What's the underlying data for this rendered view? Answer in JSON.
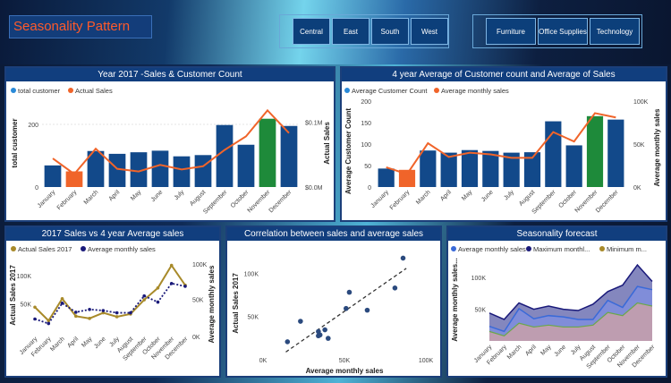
{
  "header": {
    "title": "Seasonality Pattern"
  },
  "slicers": {
    "regions": [
      "Central",
      "East",
      "South",
      "West"
    ],
    "categories": [
      "Furniture",
      "Office Supplies",
      "Technology"
    ]
  },
  "months": [
    "January",
    "February",
    "March",
    "April",
    "May",
    "June",
    "July",
    "August",
    "September",
    "October",
    "November",
    "December"
  ],
  "panel1": {
    "title": "Year 2017 -Sales & Customer Count",
    "legend": [
      "total customer",
      "Actual Sales"
    ],
    "ylabel_left": "total customer",
    "ylabel_right": "Actual Sales",
    "yticks_left": [
      "200",
      "0"
    ],
    "yticks_right": [
      "$0.1M",
      "$0.0M"
    ]
  },
  "panel2": {
    "title": "4 year Average of Customer count and Average of Sales",
    "legend": [
      "Average Customer Count",
      "Average monthly sales"
    ],
    "ylabel_left": "Average Customer Count",
    "ylabel_right": "Average monthly sales",
    "yticks_left": [
      "200",
      "150",
      "100",
      "50",
      "0"
    ],
    "yticks_right": [
      "100K",
      "50K",
      "0K"
    ]
  },
  "panel3": {
    "title": "2017 Sales vs 4 year Average sales",
    "legend": [
      "Actual Sales 2017",
      "Average monthly sales"
    ],
    "ylabel_left": "Actual Sales 2017",
    "ylabel_right": "Average monthly sales",
    "yticks_left": [
      "100K",
      "50K"
    ],
    "yticks_right": [
      "100K",
      "50K",
      "0K"
    ]
  },
  "panel4": {
    "title": "Correlation between sales and average sales",
    "xlabel": "Average monthly sales",
    "ylabel": "Actual Sales 2017",
    "xticks": [
      "0K",
      "50K",
      "100K"
    ],
    "yticks": [
      "100K",
      "50K"
    ]
  },
  "panel5": {
    "title": "Seasonality forecast",
    "legend": [
      "Average monthly sales",
      "Maximum monthl...",
      "Minimum m..."
    ],
    "ylabel": "Average monthly sales...",
    "yticks": [
      "100K",
      "50K"
    ]
  },
  "colors": {
    "bar": "#12498a",
    "orange": "#f0642a",
    "green": "#1e8a3a",
    "gold": "#a88a2a",
    "navy": "#1a1a7a"
  },
  "chart_data": [
    {
      "type": "bar",
      "title": "Year 2017 -Sales & Customer Count",
      "categories": [
        "January",
        "February",
        "March",
        "April",
        "May",
        "June",
        "July",
        "August",
        "September",
        "October",
        "November",
        "December"
      ],
      "series": [
        {
          "name": "total customer",
          "values": [
            69,
            50,
            115,
            106,
            111,
            116,
            98,
            102,
            198,
            135,
            218,
            195
          ]
        },
        {
          "name": "Actual Sales",
          "values": [
            44000,
            20000,
            59000,
            28000,
            24000,
            34000,
            27000,
            32000,
            57000,
            78000,
            118000,
            83000
          ]
        }
      ],
      "ylim_left": [
        0,
        280
      ],
      "ylim_right": [
        0,
        135000
      ]
    },
    {
      "type": "bar",
      "title": "4 year Average of Customer count and Average of Sales",
      "categories": [
        "January",
        "February",
        "March",
        "April",
        "May",
        "June",
        "July",
        "August",
        "September",
        "October",
        "November",
        "December"
      ],
      "series": [
        {
          "name": "Average Customer Count",
          "values": [
            43,
            40,
            85,
            80,
            86,
            84,
            80,
            81,
            153,
            97,
            165,
            157
          ]
        },
        {
          "name": "Average monthly sales",
          "values": [
            23000,
            15000,
            51000,
            35000,
            40000,
            38000,
            34000,
            34000,
            64000,
            53000,
            86000,
            81000
          ]
        }
      ],
      "ylim_left": [
        0,
        200
      ],
      "ylim_right": [
        0,
        100000
      ]
    },
    {
      "type": "line",
      "title": "2017 Sales vs 4 year Average sales",
      "categories": [
        "January",
        "February",
        "March",
        "April",
        "May",
        "June",
        "July",
        "August",
        "September",
        "October",
        "November",
        "December"
      ],
      "series": [
        {
          "name": "Actual Sales 2017",
          "values": [
            44000,
            20000,
            59000,
            28000,
            24000,
            34000,
            27000,
            32000,
            57000,
            78000,
            118000,
            83000
          ]
        },
        {
          "name": "Average monthly sales",
          "values": [
            23000,
            15000,
            51000,
            35000,
            40000,
            38000,
            34000,
            34000,
            64000,
            53000,
            86000,
            81000
          ]
        }
      ]
    },
    {
      "type": "scatter",
      "title": "Correlation between sales and average sales",
      "points": [
        [
          23000,
          44000
        ],
        [
          15000,
          20000
        ],
        [
          51000,
          59000
        ],
        [
          35000,
          28000
        ],
        [
          40000,
          24000
        ],
        [
          38000,
          34000
        ],
        [
          34000,
          27000
        ],
        [
          34000,
          32000
        ],
        [
          64000,
          57000
        ],
        [
          53000,
          78000
        ],
        [
          86000,
          118000
        ],
        [
          81000,
          83000
        ]
      ],
      "xlim": [
        0,
        100000
      ],
      "ylim": [
        0,
        130000
      ]
    },
    {
      "type": "area",
      "title": "Seasonality forecast",
      "categories": [
        "January",
        "February",
        "March",
        "April",
        "May",
        "June",
        "July",
        "August",
        "September",
        "October",
        "November",
        "December"
      ],
      "series": [
        {
          "name": "Average monthly sales",
          "values": [
            23000,
            15000,
            51000,
            35000,
            40000,
            38000,
            34000,
            34000,
            64000,
            53000,
            86000,
            81000
          ]
        },
        {
          "name": "Maximum monthl...",
          "values": [
            44000,
            34000,
            60000,
            50000,
            55000,
            50000,
            48000,
            58000,
            78000,
            88000,
            120000,
            94000
          ]
        },
        {
          "name": "Minimum m...",
          "values": [
            15000,
            8000,
            28000,
            22000,
            25000,
            22000,
            22000,
            25000,
            45000,
            40000,
            60000,
            55000
          ]
        }
      ]
    }
  ]
}
